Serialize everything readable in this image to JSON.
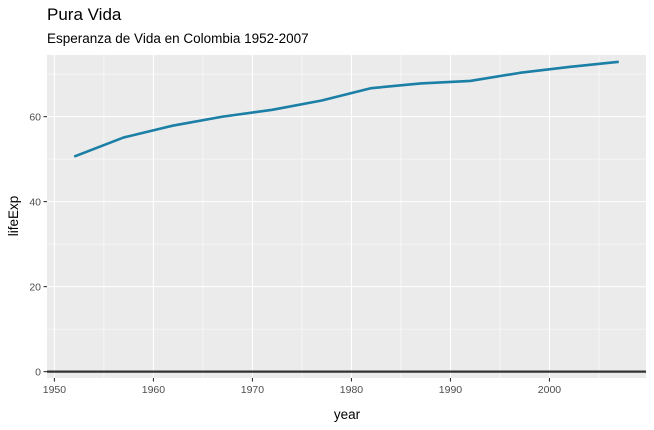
{
  "chart_data": {
    "type": "line",
    "title": "Pura Vida",
    "subtitle": "Esperanza de Vida en Colombia 1952-2007",
    "xlabel": "year",
    "ylabel": "lifeExp",
    "xlim": [
      1949.25,
      2009.75
    ],
    "ylim": [
      -1.5,
      74.5
    ],
    "x_major_ticks": [
      1950,
      1960,
      1970,
      1980,
      1990,
      2000
    ],
    "x_minor_ticks": [
      1955,
      1965,
      1975,
      1985,
      1995,
      2005
    ],
    "y_major_ticks": [
      0,
      20,
      40,
      60
    ],
    "y_minor_ticks": [
      10,
      30,
      50,
      70
    ],
    "grid": true,
    "hline": 0,
    "colors": {
      "line": "#1b7fa6",
      "panel": "#ebebeb",
      "hline": "#333333"
    },
    "series": [
      {
        "x": [
          1952,
          1957,
          1962,
          1967,
          1972,
          1977,
          1982,
          1987,
          1992,
          1997,
          2002,
          2007
        ],
        "values": [
          50.6,
          55.1,
          57.9,
          60.0,
          61.6,
          63.8,
          66.7,
          67.8,
          68.4,
          70.3,
          71.7,
          72.9
        ]
      }
    ]
  }
}
